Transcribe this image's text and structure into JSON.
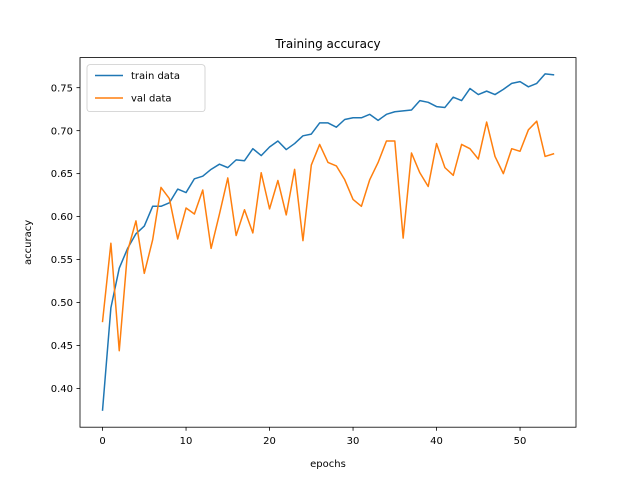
{
  "chart_data": {
    "type": "line",
    "title": "Training accuracy",
    "xlabel": "epochs",
    "ylabel": "accuracy",
    "xlim": [
      -2.7,
      56.7
    ],
    "ylim": [
      0.355,
      0.785
    ],
    "xticks": [
      0,
      10,
      20,
      30,
      40,
      50
    ],
    "xtick_labels": [
      "0",
      "10",
      "20",
      "30",
      "40",
      "50"
    ],
    "yticks": [
      0.4,
      0.45,
      0.5,
      0.55,
      0.6,
      0.65,
      0.7,
      0.75
    ],
    "ytick_labels": [
      "0.40",
      "0.45",
      "0.50",
      "0.55",
      "0.60",
      "0.65",
      "0.70",
      "0.75"
    ],
    "grid": false,
    "legend_position": "upper-left",
    "x": [
      0,
      1,
      2,
      3,
      4,
      5,
      6,
      7,
      8,
      9,
      10,
      11,
      12,
      13,
      14,
      15,
      16,
      17,
      18,
      19,
      20,
      21,
      22,
      23,
      24,
      25,
      26,
      27,
      28,
      29,
      30,
      31,
      32,
      33,
      34,
      35,
      36,
      37,
      38,
      39,
      40,
      41,
      42,
      43,
      44,
      45,
      46,
      47,
      48,
      49,
      50,
      51,
      52,
      53,
      54
    ],
    "series": [
      {
        "name": "train data",
        "color": "#1f77b4",
        "values": [
          0.375,
          0.494,
          0.54,
          0.563,
          0.58,
          0.589,
          0.612,
          0.612,
          0.616,
          0.632,
          0.628,
          0.644,
          0.647,
          0.655,
          0.661,
          0.657,
          0.666,
          0.665,
          0.679,
          0.671,
          0.681,
          0.688,
          0.678,
          0.685,
          0.694,
          0.696,
          0.709,
          0.709,
          0.704,
          0.713,
          0.715,
          0.715,
          0.719,
          0.712,
          0.719,
          0.722,
          0.723,
          0.724,
          0.735,
          0.733,
          0.728,
          0.727,
          0.739,
          0.735,
          0.749,
          0.742,
          0.746,
          0.742,
          0.748,
          0.755,
          0.757,
          0.751,
          0.755,
          0.766,
          0.765
        ]
      },
      {
        "name": "val data",
        "color": "#ff7f0e",
        "values": [
          0.478,
          0.569,
          0.444,
          0.56,
          0.595,
          0.534,
          0.573,
          0.634,
          0.621,
          0.574,
          0.61,
          0.603,
          0.631,
          0.563,
          0.603,
          0.645,
          0.578,
          0.608,
          0.581,
          0.651,
          0.609,
          0.642,
          0.602,
          0.655,
          0.572,
          0.66,
          0.684,
          0.663,
          0.659,
          0.643,
          0.62,
          0.612,
          0.643,
          0.663,
          0.688,
          0.688,
          0.575,
          0.674,
          0.651,
          0.635,
          0.685,
          0.657,
          0.648,
          0.684,
          0.679,
          0.667,
          0.71,
          0.67,
          0.65,
          0.679,
          0.676,
          0.701,
          0.711,
          0.67,
          0.673
        ]
      }
    ]
  }
}
